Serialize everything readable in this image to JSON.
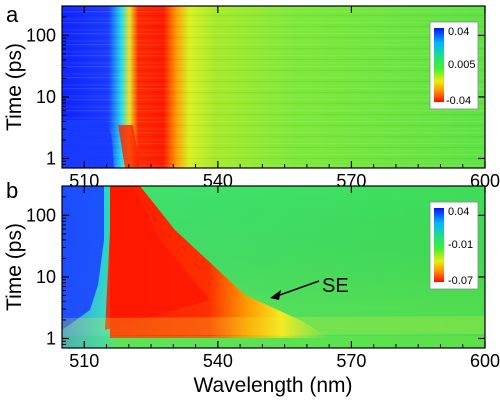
{
  "chart_data": [
    {
      "type": "heatmap",
      "panel_label": "a",
      "xlim": [
        505,
        600
      ],
      "ylim": [
        0.7,
        300
      ],
      "y_scale": "log",
      "ylabel": "Time (ps)",
      "xticks": [
        "510",
        "540",
        "570",
        "600"
      ],
      "yticks": [
        "1",
        "10",
        "100"
      ],
      "colorbar": {
        "max_label": "0.04",
        "mid_label": "0.005",
        "min_label": "-0.04",
        "max": 0.04,
        "mid": 0.005,
        "min": -0.04
      },
      "colors": {
        "positive": "#1133ff",
        "zero": "#33dd44",
        "negative": "#ee1100"
      },
      "features": [
        {
          "kind": "positive band",
          "wavelength_range_nm": [
            505,
            516
          ]
        },
        {
          "kind": "negative band",
          "wavelength_range_nm": [
            518,
            532
          ]
        }
      ]
    },
    {
      "type": "heatmap",
      "panel_label": "b",
      "xlim": [
        505,
        600
      ],
      "ylim": [
        0.7,
        300
      ],
      "y_scale": "log",
      "xlabel": "Wavelength (nm)",
      "ylabel": "Time (ps)",
      "xticks": [
        "510",
        "540",
        "570",
        "600"
      ],
      "yticks": [
        "1",
        "10",
        "100"
      ],
      "colorbar": {
        "max_label": "0.04",
        "mid_label": "-0.01",
        "min_label": "-0.07",
        "max": 0.04,
        "mid": -0.01,
        "min": -0.07
      },
      "colors": {
        "positive": "#1133ff",
        "zero": "#33dd44",
        "negative": "#ee1100"
      },
      "annotation": {
        "text": "SE",
        "target_wavelength_nm": 552,
        "target_time_ps": 4
      }
    }
  ]
}
